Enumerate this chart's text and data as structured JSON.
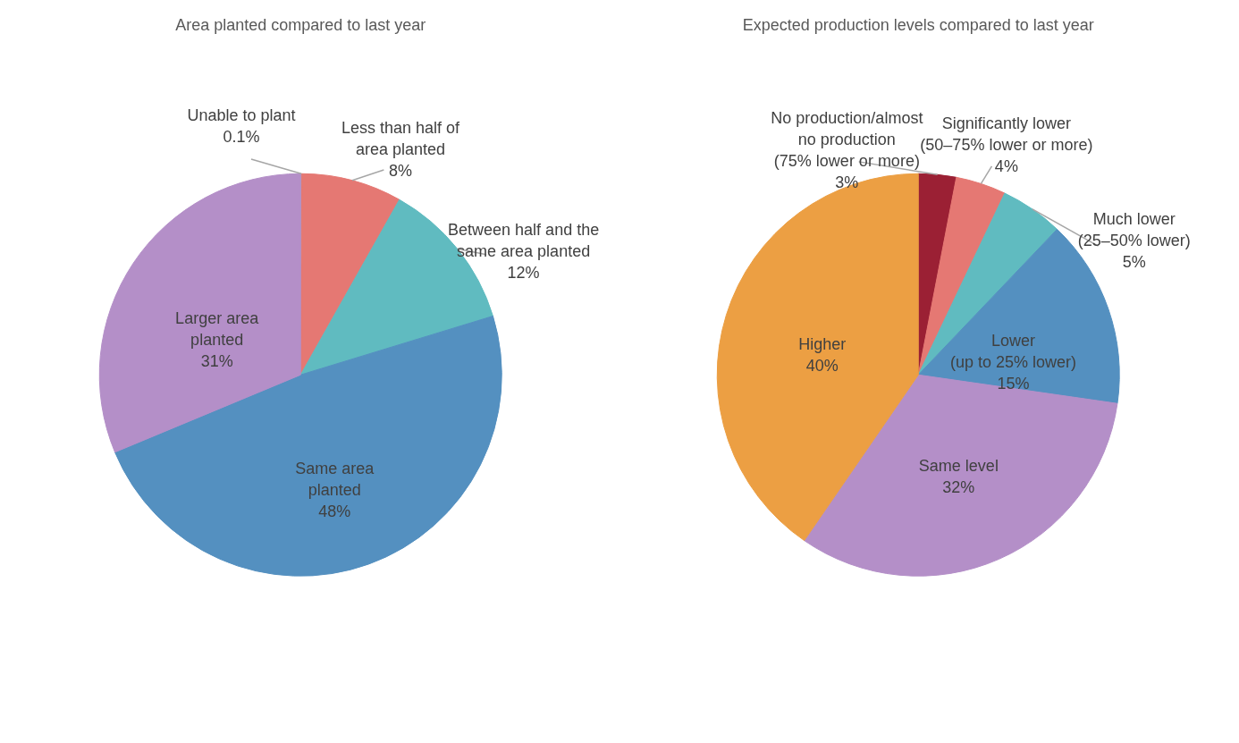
{
  "chart_data": [
    {
      "type": "pie",
      "title": "Area planted compared to last year",
      "categories": [
        "Unable to plant",
        "Less than half of area planted",
        "Between half and the same area planted",
        "Same area planted",
        "Larger area planted"
      ],
      "values": [
        0.1,
        8,
        12,
        48,
        31
      ],
      "colors": [
        "#a5a5a5",
        "#e57873",
        "#60bbc0",
        "#5490c0",
        "#b48fc8"
      ],
      "value_labels": [
        "0.1%",
        "8%",
        "12%",
        "48%",
        "31%"
      ]
    },
    {
      "type": "pie",
      "title": "Expected production levels compared to last year",
      "categories": [
        "No production/almost no production (75% lower or more)",
        "Significantly lower (50–75% lower or more)",
        "Much lower (25–50% lower)",
        "Lower (up to 25% lower)",
        "Same level",
        "Higher"
      ],
      "values": [
        3,
        4,
        5,
        15,
        32,
        40
      ],
      "colors": [
        "#9b2034",
        "#e57873",
        "#60bbc0",
        "#5490c0",
        "#b48fc8",
        "#ec9f43"
      ],
      "value_labels": [
        "3%",
        "4%",
        "5%",
        "15%",
        "32%",
        "40%"
      ]
    }
  ]
}
